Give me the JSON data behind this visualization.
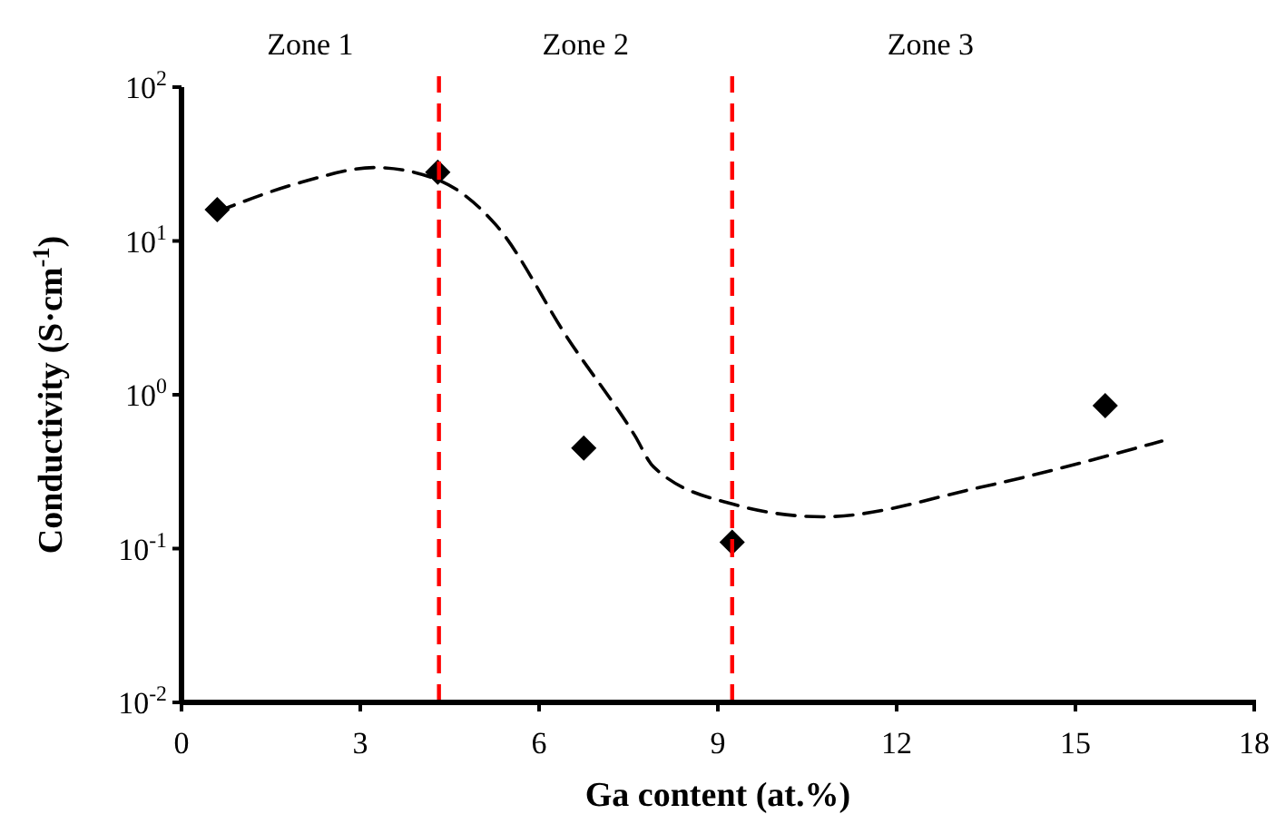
{
  "chart_data": {
    "type": "scatter",
    "xlabel": "Ga content (at.%)",
    "ylabel": "Conductivity (S·cm$^{-1}$)",
    "log": "y",
    "grid": false,
    "xlim": [
      0,
      18
    ],
    "xticks": [
      0,
      3,
      6,
      9,
      12,
      15,
      18
    ],
    "ylim": [
      0.01,
      100
    ],
    "yticks": [
      {
        "value": 0.01,
        "label": "10$^{-2}$"
      },
      {
        "value": 0.1,
        "label": "10$^{-1}$"
      },
      {
        "value": 1,
        "label": "10$^{0}$"
      },
      {
        "value": 10,
        "label": "10$^{1}$"
      },
      {
        "value": 100,
        "label": "10$^{2}$"
      }
    ],
    "series": [
      {
        "color": "#000000",
        "marker": "diamond",
        "x": [
          0.6,
          4.3,
          6.75,
          9.24,
          15.5
        ],
        "values": [
          16,
          28,
          0.45,
          0.11,
          0.85
        ]
      },
      {
        "type": "line",
        "color": "#000000",
        "marker": "none",
        "line_style": "dashed",
        "x": [
          0.6,
          2,
          3.25,
          4.3,
          5.27,
          6.49,
          7.61,
          7.92,
          9.24,
          10.76,
          13.4,
          16.45
        ],
        "values": [
          15.5,
          24,
          30,
          25,
          12.8,
          2.3,
          0.54,
          0.34,
          0.195,
          0.161,
          0.25,
          0.5
        ]
      }
    ],
    "ref_lines": [
      {
        "axis": "x",
        "value": 4.32,
        "color": "#ff0000",
        "line_style": "dashed"
      },
      {
        "axis": "x",
        "value": 9.24,
        "color": "#ff0000",
        "line_style": "dashed"
      }
    ],
    "annotations": [
      "Zone 1",
      "Zone 2",
      "Zone 3"
    ]
  }
}
